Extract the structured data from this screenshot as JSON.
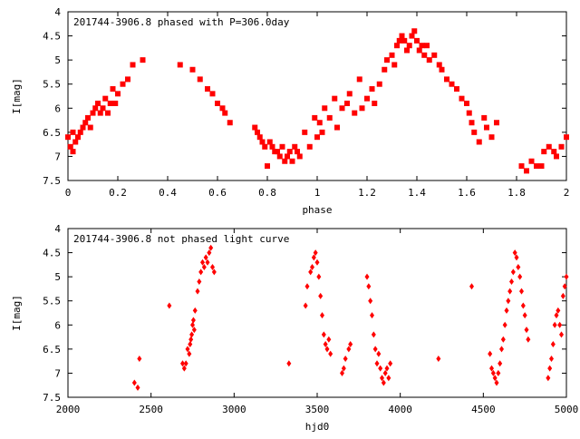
{
  "colors": {
    "points": "#ff0000",
    "axes": "#000000",
    "background": "#ffffff"
  },
  "chart_data": [
    {
      "type": "scatter",
      "title": "201744-3906.8 phased with P=306.0day",
      "xlabel": "phase",
      "ylabel": "I[mag]",
      "xlim": [
        0,
        2
      ],
      "ylim": [
        7.5,
        4
      ],
      "y_inverted": true,
      "grid": false,
      "x_ticks": [
        "0",
        "0.2",
        "0.4",
        "0.6",
        "0.8",
        "1",
        "1.2",
        "1.4",
        "1.6",
        "1.8",
        "2"
      ],
      "y_ticks": [
        "4",
        "4.5",
        "5",
        "5.5",
        "6",
        "6.5",
        "7",
        "7.5"
      ],
      "marker": "filled-square",
      "series": [
        {
          "x": [
            0.0,
            0.01,
            0.02,
            0.02,
            0.03,
            0.04,
            0.05,
            0.06,
            0.07,
            0.08,
            0.09,
            0.1,
            0.11,
            0.12,
            0.13,
            0.14,
            0.15,
            0.16,
            0.17,
            0.18,
            0.19,
            0.2,
            0.22,
            0.24,
            0.26,
            0.3,
            0.45,
            0.5,
            0.53,
            0.56,
            0.58,
            0.6,
            0.62,
            0.63,
            0.65,
            0.75,
            0.76,
            0.77,
            0.78,
            0.79,
            0.8,
            0.81,
            0.82,
            0.83,
            0.84,
            0.85,
            0.86,
            0.87,
            0.88,
            0.89,
            0.9,
            0.91,
            0.92,
            0.93,
            0.95,
            0.97,
            0.99,
            1.0,
            1.01,
            1.02,
            1.03,
            1.05,
            1.07,
            1.08,
            1.1,
            1.12,
            1.13,
            1.15,
            1.17,
            1.18,
            1.2,
            1.22,
            1.23,
            1.25,
            1.27,
            1.28,
            1.3,
            1.31,
            1.32,
            1.33,
            1.34,
            1.35,
            1.36,
            1.37,
            1.38,
            1.39,
            1.4,
            1.41,
            1.42,
            1.43,
            1.44,
            1.45,
            1.47,
            1.49,
            1.5,
            1.52,
            1.54,
            1.56,
            1.58,
            1.6,
            1.61,
            1.62,
            1.63,
            1.65,
            1.67,
            1.68,
            1.7,
            1.72,
            1.82,
            1.84,
            1.86,
            1.88,
            1.9,
            1.91,
            1.93,
            1.95,
            1.96,
            1.98,
            2.0
          ],
          "y": [
            6.6,
            6.8,
            6.9,
            6.5,
            6.7,
            6.6,
            6.5,
            6.4,
            6.3,
            6.2,
            6.4,
            6.1,
            6.0,
            5.9,
            6.1,
            6.0,
            5.8,
            6.1,
            5.9,
            5.6,
            5.9,
            5.7,
            5.5,
            5.4,
            5.1,
            5.0,
            5.1,
            5.2,
            5.4,
            5.6,
            5.7,
            5.9,
            6.0,
            6.1,
            6.3,
            6.4,
            6.5,
            6.6,
            6.7,
            6.8,
            7.2,
            6.7,
            6.8,
            6.9,
            6.9,
            7.0,
            6.8,
            7.1,
            7.0,
            6.9,
            7.1,
            6.8,
            6.9,
            7.0,
            6.5,
            6.8,
            6.2,
            6.6,
            6.3,
            6.5,
            6.0,
            6.2,
            5.8,
            6.4,
            6.0,
            5.9,
            5.7,
            6.1,
            5.4,
            6.0,
            5.8,
            5.6,
            5.9,
            5.5,
            5.2,
            5.0,
            4.9,
            5.1,
            4.7,
            4.6,
            4.5,
            4.6,
            4.8,
            4.7,
            4.5,
            4.4,
            4.6,
            4.8,
            4.7,
            4.9,
            4.7,
            5.0,
            4.9,
            5.1,
            5.2,
            5.4,
            5.5,
            5.6,
            5.8,
            5.9,
            6.1,
            6.3,
            6.5,
            6.7,
            6.2,
            6.4,
            6.6,
            6.3,
            7.2,
            7.3,
            7.1,
            7.2,
            7.2,
            6.9,
            6.8,
            6.9,
            7.0,
            6.8,
            6.6
          ]
        }
      ]
    },
    {
      "type": "scatter",
      "title": "201744-3906.8 not phased light curve",
      "xlabel": "hjd0",
      "ylabel": "I[mag]",
      "xlim": [
        2000,
        5000
      ],
      "ylim": [
        7.5,
        4
      ],
      "y_inverted": true,
      "grid": false,
      "x_ticks": [
        "2000",
        "2500",
        "3000",
        "3500",
        "4000",
        "4500",
        "5000"
      ],
      "y_ticks": [
        "4",
        "4.5",
        "5",
        "5.5",
        "6",
        "6.5",
        "7",
        "7.5"
      ],
      "marker": "filled-diamond",
      "series": [
        {
          "x": [
            2400,
            2420,
            2430,
            2610,
            2690,
            2700,
            2710,
            2720,
            2730,
            2735,
            2740,
            2745,
            2750,
            2755,
            2760,
            2765,
            2780,
            2790,
            2800,
            2810,
            2820,
            2830,
            2840,
            2850,
            2860,
            2870,
            2880,
            3330,
            3430,
            3440,
            3460,
            3470,
            3480,
            3490,
            3500,
            3510,
            3520,
            3530,
            3540,
            3550,
            3560,
            3570,
            3580,
            3650,
            3660,
            3670,
            3690,
            3700,
            3800,
            3810,
            3820,
            3830,
            3840,
            3850,
            3860,
            3870,
            3880,
            3890,
            3900,
            3910,
            3920,
            3930,
            3940,
            4230,
            4430,
            4540,
            4550,
            4560,
            4570,
            4580,
            4590,
            4600,
            4610,
            4620,
            4630,
            4640,
            4650,
            4660,
            4670,
            4680,
            4690,
            4700,
            4710,
            4720,
            4730,
            4740,
            4750,
            4760,
            4770,
            4890,
            4900,
            4910,
            4920,
            4930,
            4940,
            4950,
            4960,
            4970,
            4980,
            4990,
            5000
          ],
          "y": [
            7.2,
            7.3,
            6.7,
            5.6,
            6.8,
            6.9,
            6.8,
            6.5,
            6.6,
            6.4,
            6.3,
            6.2,
            6.0,
            5.9,
            6.1,
            5.7,
            5.3,
            5.1,
            4.9,
            4.7,
            4.8,
            4.6,
            4.7,
            4.5,
            4.4,
            4.8,
            4.9,
            6.8,
            5.6,
            5.2,
            4.9,
            4.8,
            4.6,
            4.5,
            4.7,
            5.0,
            5.4,
            5.8,
            6.2,
            6.4,
            6.5,
            6.3,
            6.6,
            7.0,
            6.9,
            6.7,
            6.5,
            6.4,
            5.0,
            5.2,
            5.5,
            5.8,
            6.2,
            6.5,
            6.8,
            6.6,
            6.9,
            7.1,
            7.2,
            7.0,
            6.9,
            7.1,
            6.8,
            6.7,
            5.2,
            6.6,
            6.9,
            7.0,
            7.1,
            7.2,
            7.0,
            6.8,
            6.5,
            6.3,
            6.0,
            5.7,
            5.5,
            5.3,
            5.1,
            4.9,
            4.5,
            4.6,
            4.8,
            5.0,
            5.3,
            5.6,
            5.8,
            6.1,
            6.3,
            7.1,
            6.9,
            6.7,
            6.4,
            6.0,
            5.8,
            5.7,
            6.0,
            6.2,
            5.4,
            5.2,
            5.0
          ]
        }
      ]
    }
  ]
}
